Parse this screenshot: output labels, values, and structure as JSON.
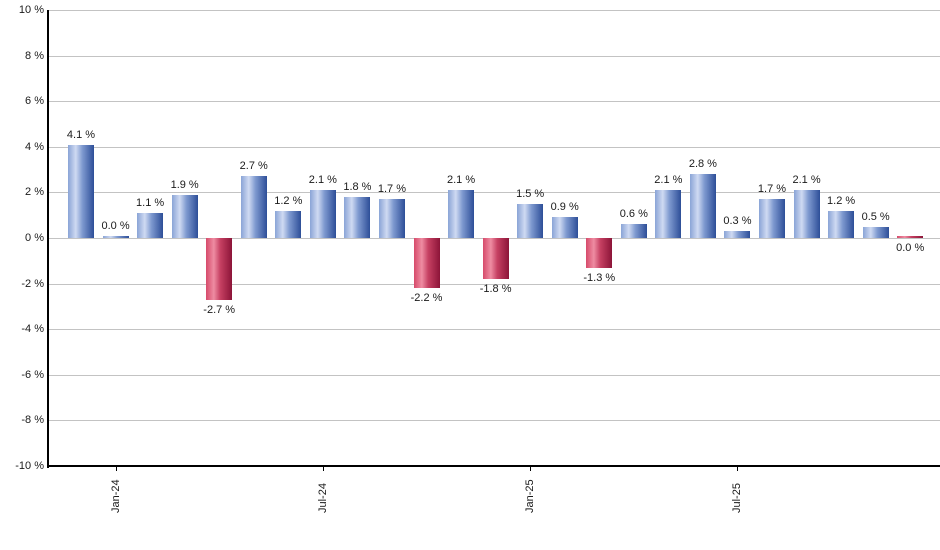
{
  "chart_data": {
    "type": "bar",
    "title": "",
    "xlabel": "",
    "ylabel": "",
    "ylim": [
      -10,
      10
    ],
    "y_tick_interval": 2,
    "grid": true,
    "legend": false,
    "y_tick_labels": [
      "10 %",
      "8 %",
      "6 %",
      "4 %",
      "2 %",
      "0 %",
      "-2 %",
      "-4 %",
      "-6 %",
      "-8 %",
      "-10 %"
    ],
    "y_tick_values": [
      10,
      8,
      6,
      4,
      2,
      0,
      -2,
      -4,
      -6,
      -8,
      -10
    ],
    "x_tick_labels": [
      "Jan-24",
      "Jul-24",
      "Jan-25",
      "Jul-25"
    ],
    "x_tick_bar_indices": [
      1,
      7,
      13,
      19
    ],
    "values": [
      4.1,
      0.0,
      1.1,
      1.9,
      -2.7,
      2.7,
      1.2,
      2.1,
      1.8,
      1.7,
      -2.2,
      2.1,
      -1.8,
      1.5,
      0.9,
      -1.3,
      0.6,
      2.1,
      2.8,
      0.3,
      1.7,
      2.1,
      1.2,
      0.5,
      0.0
    ],
    "bar_colors": [
      "pos",
      "pos",
      "pos",
      "pos",
      "neg",
      "pos",
      "pos",
      "pos",
      "pos",
      "pos",
      "neg",
      "pos",
      "neg",
      "pos",
      "pos",
      "neg",
      "pos",
      "pos",
      "pos",
      "pos",
      "pos",
      "pos",
      "pos",
      "pos",
      "neg"
    ],
    "data_labels": [
      "4.1 %",
      "0.0 %",
      "1.1 %",
      "1.9 %",
      "-2.7 %",
      "2.7 %",
      "1.2 %",
      "2.1 %",
      "1.8 %",
      "1.7 %",
      "-2.2 %",
      "2.1 %",
      "-1.8 %",
      "1.5 %",
      "0.9 %",
      "-1.3 %",
      "0.6 %",
      "2.1 %",
      "2.8 %",
      "0.3 %",
      "1.7 %",
      "2.1 %",
      "1.2 %",
      "0.5 %",
      "0.0 %"
    ],
    "colors": {
      "positive_bar_gradient": [
        "#8aa4d6",
        "#cfdaf2",
        "#7f9ad0",
        "#2d4e98"
      ],
      "negative_bar_gradient": [
        "#d64a6a",
        "#ee8ca2",
        "#c64062",
        "#8c1438"
      ],
      "gridline": "#c3c3c3",
      "axis": "#000000",
      "label_text": "#1a1a1a",
      "background": "#ffffff"
    }
  }
}
